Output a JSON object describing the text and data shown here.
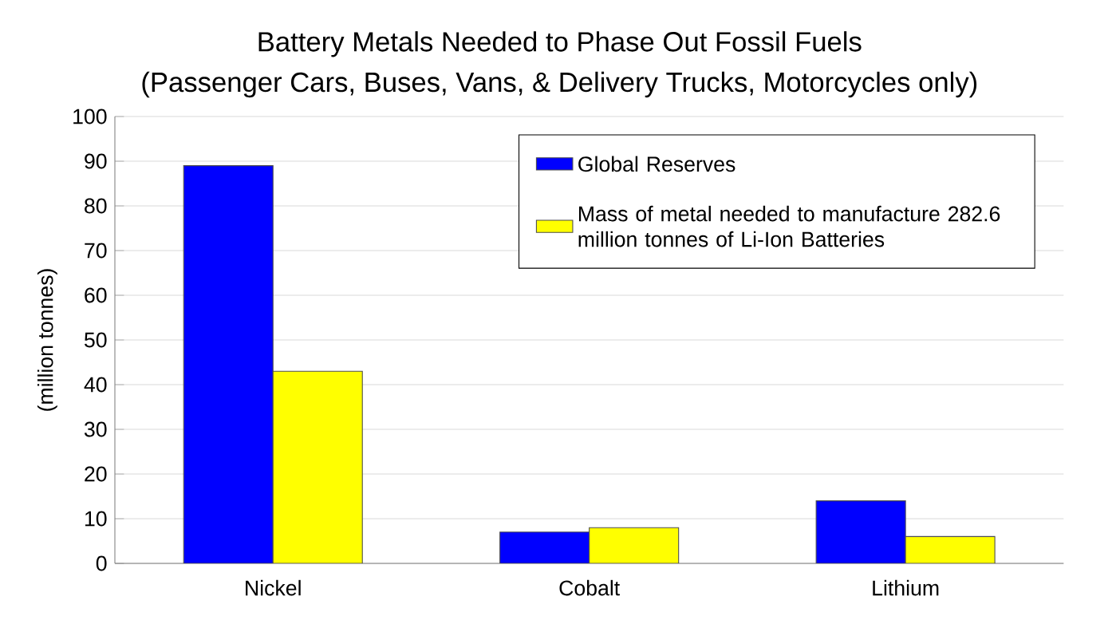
{
  "chart_data": {
    "type": "bar",
    "title": "Battery Metals Needed to Phase Out Fossil Fuels",
    "subtitle": "(Passenger Cars, Buses, Vans, & Delivery Trucks, Motorcycles only)",
    "ylabel": "(million tonnes)",
    "categories": [
      "Nickel",
      "Cobalt",
      "Lithium"
    ],
    "series": [
      {
        "name": "Global Reserves",
        "color": "#0000ff",
        "values": [
          89,
          7,
          14
        ]
      },
      {
        "name": "Mass of metal needed to manufacture 282.6 million tonnes of Li-Ion Batteries",
        "color": "#ffff00",
        "values": [
          43,
          8,
          6
        ]
      }
    ],
    "ylim": [
      0,
      100
    ],
    "yticks": [
      0,
      10,
      20,
      30,
      40,
      50,
      60,
      70,
      80,
      90,
      100
    ],
    "grid": "y",
    "legend": "top right"
  }
}
